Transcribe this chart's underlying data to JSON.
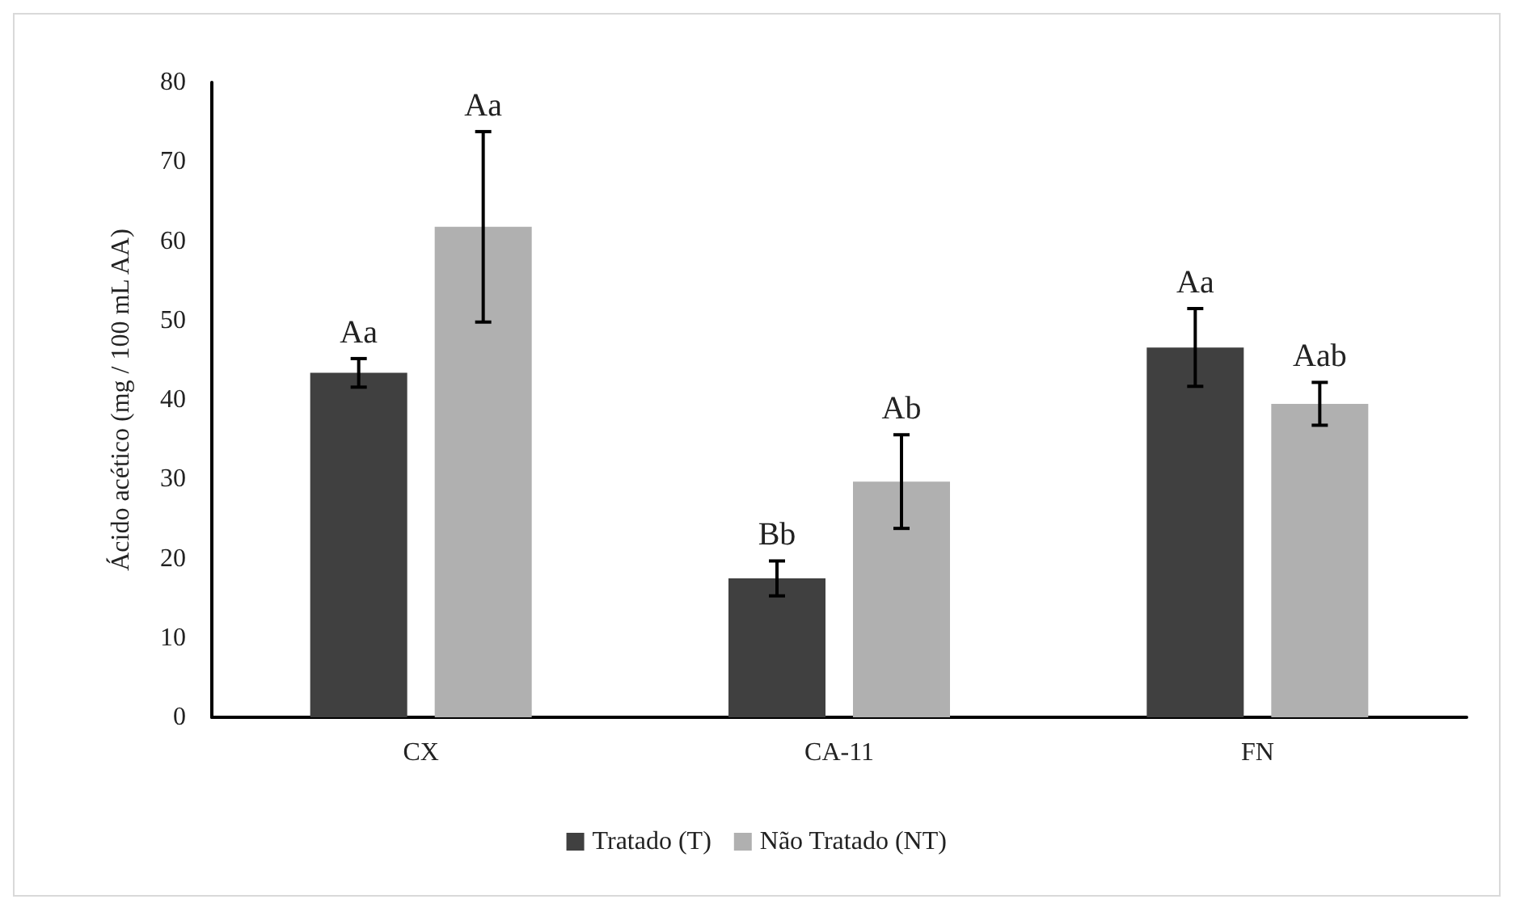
{
  "chart_data": {
    "type": "bar",
    "ylabel": "Ácido acético (mg / 100 mL AA)",
    "categories": [
      "CX",
      "CA-11",
      "FN"
    ],
    "series": [
      {
        "name": "Tratado (T)",
        "color": "#404040",
        "values": [
          43.4,
          17.5,
          46.6
        ],
        "errors": [
          1.8,
          2.2,
          4.9
        ]
      },
      {
        "name": "Não Tratado (NT)",
        "color": "#b0b0b0",
        "values": [
          61.8,
          29.7,
          39.5
        ],
        "errors": [
          12,
          5.9,
          2.7
        ]
      }
    ],
    "annotations": [
      "Aa",
      "Aa",
      "Bb",
      "Ab",
      "Aa",
      "Aab"
    ],
    "ylim": [
      0,
      80
    ],
    "yticks": [
      0,
      10,
      20,
      30,
      40,
      50,
      60,
      70,
      80
    ],
    "grid": false,
    "legend": "bottom"
  }
}
